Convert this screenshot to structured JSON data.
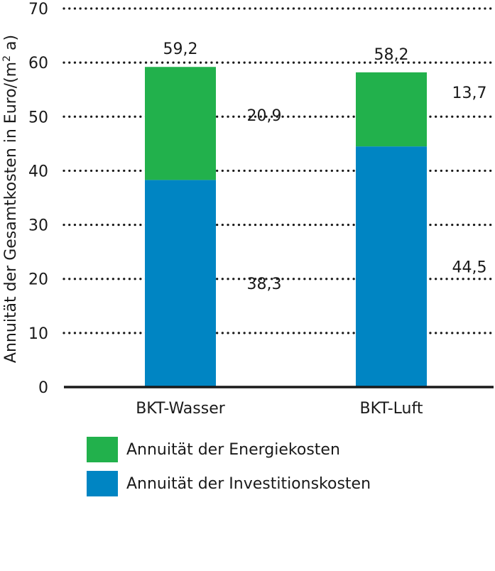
{
  "chart_data": {
    "type": "bar",
    "stacked": true,
    "ylabel_main": "Annuität der Gesamtkosten in Euro/(m",
    "ylabel_sup": "2",
    "ylabel_tail": " a)",
    "ylim": [
      0,
      70
    ],
    "yticks": [
      "0",
      "10",
      "20",
      "30",
      "40",
      "50",
      "60",
      "70"
    ],
    "grid": true,
    "legend_position": "bottom",
    "categories": [
      "BKT-Wasser",
      "BKT-Luft"
    ],
    "series": [
      {
        "name": "Annuität der Investitionskosten",
        "color": "#0085c3",
        "values": [
          38.3,
          44.5
        ],
        "labels": [
          "38,3",
          "44,5"
        ]
      },
      {
        "name": "Annuität der Energiekosten",
        "color": "#22b14c",
        "values": [
          20.9,
          13.7
        ],
        "labels": [
          "20,9",
          "13,7"
        ]
      }
    ],
    "totals": [
      "59,2",
      "58,2"
    ],
    "total_values": [
      59.2,
      58.2
    ]
  },
  "legend": [
    {
      "label": "Annuität der Energiekosten",
      "color": "#22b14c"
    },
    {
      "label": "Annuität der Investitionskosten",
      "color": "#0085c3"
    }
  ]
}
